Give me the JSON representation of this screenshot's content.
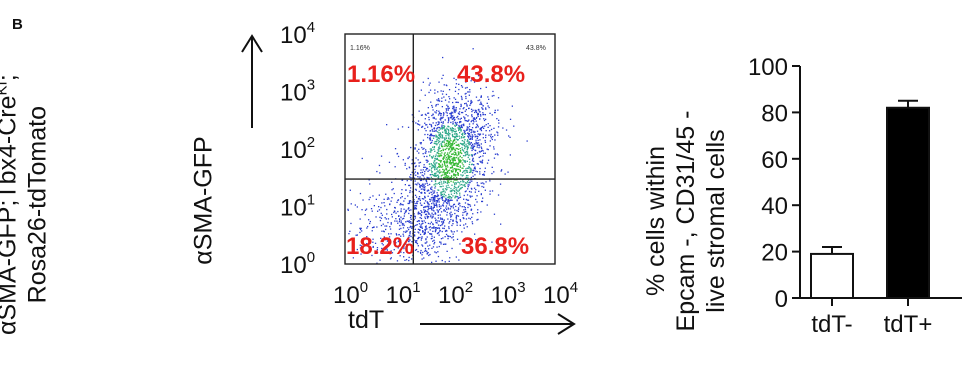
{
  "panel_label": "B",
  "side_label": {
    "line1_prefix": "αSMA-GFP;Tbx4-Cre",
    "line1_sup": "KI",
    "line1_suffix": ";",
    "line2": "Rosa26-tdTomato"
  },
  "chart_data": [
    {
      "type": "scatter",
      "subtype": "flow-cytometry-quadrant-plot",
      "xlabel": "tdT",
      "ylabel": "αSMA-GFP",
      "x_scale": "log",
      "y_scale": "log",
      "xlim": [
        1,
        10000
      ],
      "ylim": [
        1,
        10000
      ],
      "x_ticks": [
        {
          "base": "10",
          "exp": "0"
        },
        {
          "base": "10",
          "exp": "1"
        },
        {
          "base": "10",
          "exp": "2"
        },
        {
          "base": "10",
          "exp": "3"
        },
        {
          "base": "10",
          "exp": "4"
        }
      ],
      "y_ticks": [
        {
          "base": "10",
          "exp": "0"
        },
        {
          "base": "10",
          "exp": "1"
        },
        {
          "base": "10",
          "exp": "2"
        },
        {
          "base": "10",
          "exp": "3"
        },
        {
          "base": "10",
          "exp": "4"
        }
      ],
      "gates": {
        "x": 20,
        "y": 30
      },
      "quadrants": [
        {
          "position": "top-left",
          "value": "1.16%",
          "small_label": "1.16%"
        },
        {
          "position": "top-right",
          "value": "43.8%",
          "small_label": "43.8%"
        },
        {
          "position": "bottom-left",
          "value": "18.2%"
        },
        {
          "position": "bottom-right",
          "value": "36.8%"
        }
      ],
      "colors": {
        "quadrant_text": "#e8201c",
        "density_low": "#2a3ecf",
        "density_high": "#36b836"
      }
    },
    {
      "type": "bar",
      "categories": [
        "tdT-",
        "tdT+"
      ],
      "values": [
        19,
        82
      ],
      "errors": [
        3,
        3
      ],
      "ylabel_lines": [
        "% cells within",
        "Epcam -, CD31/45 -",
        "live stromal cells"
      ],
      "ylim": [
        0,
        100
      ],
      "y_ticks": [
        "0",
        "20",
        "40",
        "60",
        "80",
        "100"
      ],
      "bar_fills": [
        "#ffffff",
        "#000000"
      ]
    }
  ]
}
